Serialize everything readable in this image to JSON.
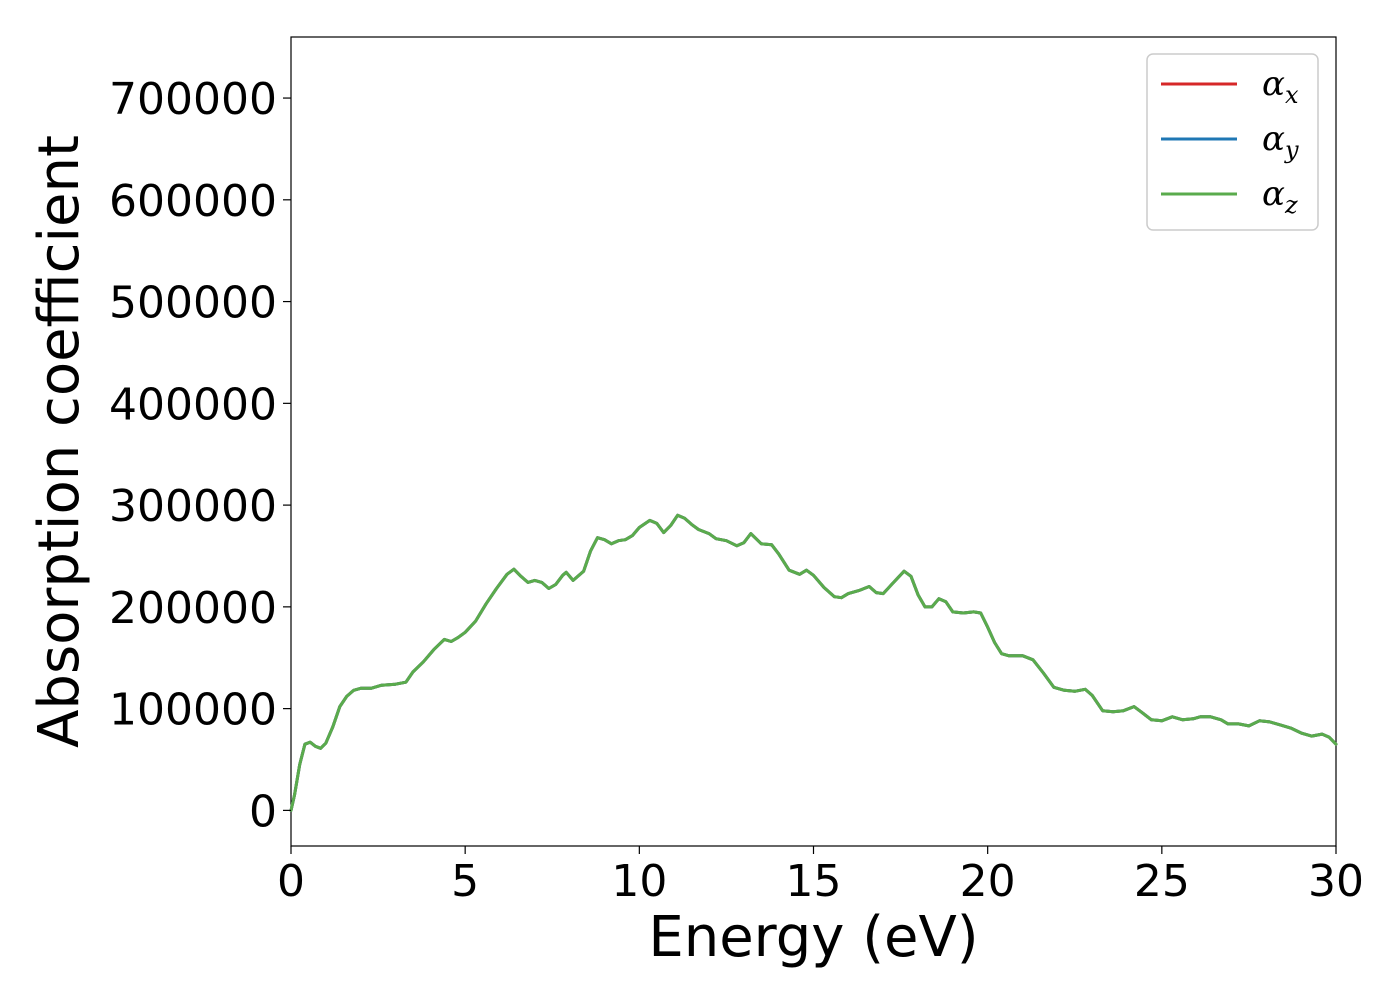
{
  "chart_data": {
    "type": "line",
    "xlabel": "Energy (eV)",
    "ylabel": "Absorption coefficient",
    "xlim": [
      0,
      30
    ],
    "ylim": [
      -35000,
      760000
    ],
    "xticks": [
      0,
      5,
      10,
      15,
      20,
      25,
      30
    ],
    "yticks": [
      0,
      100000,
      200000,
      300000,
      400000,
      500000,
      600000,
      700000
    ],
    "grid": false,
    "legend_position": "top-right",
    "x": [
      0,
      0.1,
      0.25,
      0.4,
      0.55,
      0.7,
      0.85,
      1.0,
      1.2,
      1.4,
      1.6,
      1.8,
      2.0,
      2.3,
      2.6,
      3.0,
      3.3,
      3.5,
      3.8,
      4.1,
      4.4,
      4.6,
      4.8,
      5.0,
      5.3,
      5.6,
      5.9,
      6.2,
      6.4,
      6.6,
      6.8,
      7.0,
      7.2,
      7.4,
      7.6,
      7.8,
      7.9,
      8.1,
      8.4,
      8.6,
      8.8,
      9.0,
      9.2,
      9.4,
      9.6,
      9.8,
      10.0,
      10.3,
      10.5,
      10.7,
      10.9,
      11.1,
      11.3,
      11.5,
      11.7,
      12.0,
      12.2,
      12.5,
      12.8,
      13.0,
      13.2,
      13.5,
      13.8,
      14.0,
      14.3,
      14.6,
      14.8,
      15.0,
      15.3,
      15.6,
      15.8,
      16.0,
      16.3,
      16.6,
      16.8,
      17.0,
      17.3,
      17.6,
      17.8,
      18.0,
      18.2,
      18.4,
      18.6,
      18.8,
      19.0,
      19.3,
      19.6,
      19.8,
      20.0,
      20.2,
      20.4,
      20.6,
      20.8,
      21.0,
      21.3,
      21.6,
      21.9,
      22.2,
      22.5,
      22.8,
      23.0,
      23.3,
      23.6,
      23.9,
      24.2,
      24.4,
      24.7,
      25.0,
      25.3,
      25.6,
      25.9,
      26.1,
      26.4,
      26.7,
      26.9,
      27.2,
      27.5,
      27.8,
      28.1,
      28.4,
      28.7,
      29.0,
      29.3,
      29.6,
      29.8,
      30.0
    ],
    "series": [
      {
        "name": "αx",
        "color": "#d62728",
        "values": [
          0,
          15000,
          45000,
          65000,
          67000,
          63000,
          61000,
          66000,
          82000,
          102000,
          112000,
          118000,
          120000,
          120000,
          123000,
          124000,
          126000,
          136000,
          146000,
          158000,
          168000,
          166000,
          170000,
          175000,
          186000,
          203000,
          218000,
          232000,
          237000,
          230000,
          224000,
          226000,
          224000,
          218000,
          222000,
          231000,
          234000,
          226000,
          235000,
          255000,
          268000,
          266000,
          262000,
          265000,
          266000,
          270000,
          278000,
          285000,
          282000,
          273000,
          280000,
          290000,
          287000,
          281000,
          276000,
          272000,
          267000,
          265000,
          260000,
          263000,
          272000,
          262000,
          261000,
          252000,
          236000,
          232000,
          236000,
          231000,
          219000,
          210000,
          209000,
          213000,
          216000,
          220000,
          214000,
          213000,
          224000,
          235000,
          230000,
          212000,
          200000,
          200000,
          208000,
          205000,
          195000,
          194000,
          195000,
          194000,
          180000,
          165000,
          154000,
          152000,
          152000,
          152000,
          148000,
          135000,
          121000,
          118000,
          117000,
          119000,
          113000,
          98000,
          97000,
          98000,
          102000,
          97000,
          89000,
          88000,
          92000,
          89000,
          90000,
          92000,
          92000,
          89000,
          85000,
          85000,
          83000,
          88000,
          87000,
          84000,
          81000,
          76000,
          73000,
          75000,
          72000,
          65000
        ]
      },
      {
        "name": "αy",
        "color": "#1f77b4",
        "values": [
          0,
          15000,
          45000,
          65000,
          67000,
          63000,
          61000,
          66000,
          82000,
          102000,
          112000,
          118000,
          120000,
          120000,
          123000,
          124000,
          126000,
          136000,
          146000,
          158000,
          168000,
          166000,
          170000,
          175000,
          186000,
          203000,
          218000,
          232000,
          237000,
          230000,
          224000,
          226000,
          224000,
          218000,
          222000,
          231000,
          234000,
          226000,
          235000,
          255000,
          268000,
          266000,
          262000,
          265000,
          266000,
          270000,
          278000,
          285000,
          282000,
          273000,
          280000,
          290000,
          287000,
          281000,
          276000,
          272000,
          267000,
          265000,
          260000,
          263000,
          272000,
          262000,
          261000,
          252000,
          236000,
          232000,
          236000,
          231000,
          219000,
          210000,
          209000,
          213000,
          216000,
          220000,
          214000,
          213000,
          224000,
          235000,
          230000,
          212000,
          200000,
          200000,
          208000,
          205000,
          195000,
          194000,
          195000,
          194000,
          180000,
          165000,
          154000,
          152000,
          152000,
          152000,
          148000,
          135000,
          121000,
          118000,
          117000,
          119000,
          113000,
          98000,
          97000,
          98000,
          102000,
          97000,
          89000,
          88000,
          92000,
          89000,
          90000,
          92000,
          92000,
          89000,
          85000,
          85000,
          83000,
          88000,
          87000,
          84000,
          81000,
          76000,
          73000,
          75000,
          72000,
          65000
        ]
      },
      {
        "name": "αz",
        "color": "#5aab4c",
        "values": [
          0,
          15000,
          45000,
          65000,
          67000,
          63000,
          61000,
          66000,
          82000,
          102000,
          112000,
          118000,
          120000,
          120000,
          123000,
          124000,
          126000,
          136000,
          146000,
          158000,
          168000,
          166000,
          170000,
          175000,
          186000,
          203000,
          218000,
          232000,
          237000,
          230000,
          224000,
          226000,
          224000,
          218000,
          222000,
          231000,
          234000,
          226000,
          235000,
          255000,
          268000,
          266000,
          262000,
          265000,
          266000,
          270000,
          278000,
          285000,
          282000,
          273000,
          280000,
          290000,
          287000,
          281000,
          276000,
          272000,
          267000,
          265000,
          260000,
          263000,
          272000,
          262000,
          261000,
          252000,
          236000,
          232000,
          236000,
          231000,
          219000,
          210000,
          209000,
          213000,
          216000,
          220000,
          214000,
          213000,
          224000,
          235000,
          230000,
          212000,
          200000,
          200000,
          208000,
          205000,
          195000,
          194000,
          195000,
          194000,
          180000,
          165000,
          154000,
          152000,
          152000,
          152000,
          148000,
          135000,
          121000,
          118000,
          117000,
          119000,
          113000,
          98000,
          97000,
          98000,
          102000,
          97000,
          89000,
          88000,
          92000,
          89000,
          90000,
          92000,
          92000,
          89000,
          85000,
          85000,
          83000,
          88000,
          87000,
          84000,
          81000,
          76000,
          73000,
          75000,
          72000,
          65000
        ]
      }
    ],
    "legend": [
      {
        "symbol": "α",
        "subscript": "x",
        "color": "#d62728"
      },
      {
        "symbol": "α",
        "subscript": "y",
        "color": "#1f77b4"
      },
      {
        "symbol": "α",
        "subscript": "z",
        "color": "#5aab4c"
      }
    ]
  }
}
